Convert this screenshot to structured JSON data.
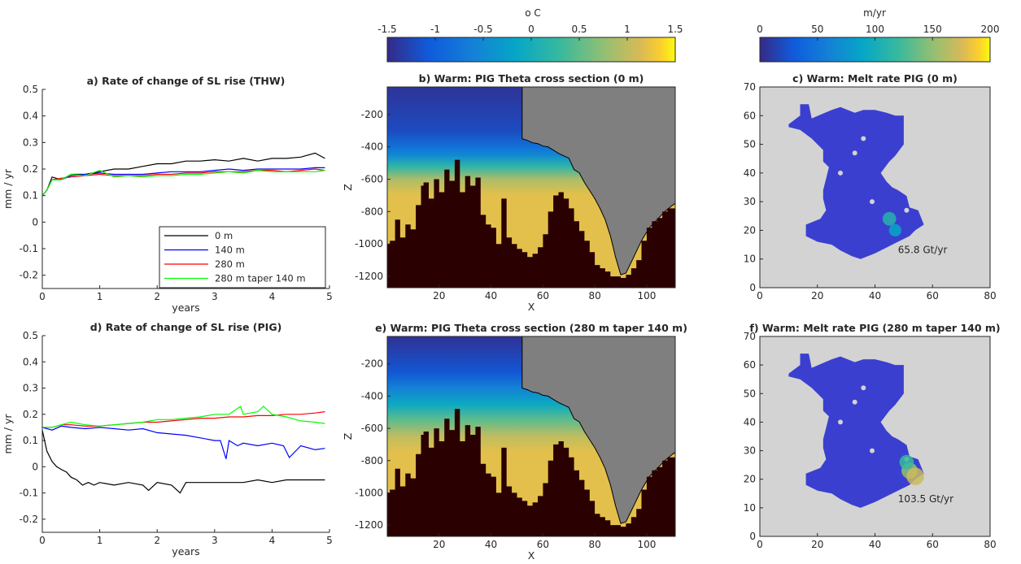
{
  "colors": {
    "black": "#000000",
    "blue": "#0000ff",
    "red": "#ff0000",
    "green": "#00ff00",
    "ice": "#7f7f7f",
    "bed": "#2a0000",
    "melt_background": "#d3d3d3",
    "melt_region": "#3b3fd0"
  },
  "colorbars": [
    {
      "label": "o C",
      "ticks": [
        "-1.5",
        "-1",
        "-0.5",
        "0",
        "0.5",
        "1",
        "1.5"
      ],
      "colormap": "parula"
    },
    {
      "label": "m/yr",
      "ticks": [
        "0",
        "50",
        "100",
        "150",
        "200"
      ],
      "colormap": "parula"
    }
  ],
  "chart_data": [
    {
      "id": "a",
      "type": "line",
      "title": "a) Rate of change of SL rise (THW)",
      "xlabel": "years",
      "ylabel": "mm / yr",
      "xlim": [
        0,
        5
      ],
      "ylim": [
        -0.25,
        0.5
      ],
      "xticks": [
        "0",
        "1",
        "2",
        "3",
        "4",
        "5"
      ],
      "yticks": [
        "-0.2",
        "-0.1",
        "0",
        "0.1",
        "0.2",
        "0.3",
        "0.4",
        "0.5"
      ],
      "legend": {
        "position": "bottom-right",
        "entries": [
          "0 m",
          "140 m",
          "280 m",
          "280 m taper 140 m"
        ]
      },
      "series": [
        {
          "name": "0 m",
          "color": "#000000",
          "x": [
            0,
            0.08,
            0.17,
            0.33,
            0.5,
            0.75,
            1,
            1.25,
            1.5,
            1.75,
            2,
            2.25,
            2.5,
            2.75,
            3,
            3.25,
            3.5,
            3.75,
            4,
            4.25,
            4.5,
            4.75,
            4.92
          ],
          "y": [
            0.1,
            0.12,
            0.17,
            0.16,
            0.18,
            0.18,
            0.19,
            0.2,
            0.2,
            0.21,
            0.22,
            0.22,
            0.23,
            0.23,
            0.235,
            0.23,
            0.24,
            0.23,
            0.24,
            0.24,
            0.245,
            0.26,
            0.24
          ]
        },
        {
          "name": "140 m",
          "color": "#0000ff",
          "x": [
            0,
            0.08,
            0.17,
            0.33,
            0.5,
            0.75,
            1,
            1.25,
            1.5,
            1.75,
            2,
            2.25,
            2.5,
            2.75,
            3,
            3.25,
            3.5,
            3.75,
            4,
            4.25,
            4.5,
            4.75,
            4.92
          ],
          "y": [
            0.1,
            0.12,
            0.16,
            0.16,
            0.175,
            0.18,
            0.185,
            0.18,
            0.18,
            0.18,
            0.185,
            0.19,
            0.19,
            0.19,
            0.195,
            0.2,
            0.195,
            0.2,
            0.2,
            0.2,
            0.2,
            0.205,
            0.205
          ]
        },
        {
          "name": "280 m",
          "color": "#ff0000",
          "x": [
            0,
            0.08,
            0.17,
            0.33,
            0.5,
            0.75,
            1,
            1.25,
            1.5,
            1.75,
            2,
            2.25,
            2.5,
            2.75,
            3,
            3.25,
            3.5,
            3.75,
            4,
            4.25,
            4.5,
            4.75,
            4.92
          ],
          "y": [
            0.1,
            0.12,
            0.16,
            0.165,
            0.17,
            0.175,
            0.18,
            0.175,
            0.175,
            0.175,
            0.18,
            0.18,
            0.185,
            0.185,
            0.19,
            0.19,
            0.19,
            0.195,
            0.195,
            0.19,
            0.195,
            0.2,
            0.195
          ]
        },
        {
          "name": "280 m taper 140 m",
          "color": "#00ff00",
          "x": [
            0,
            0.08,
            0.17,
            0.33,
            0.5,
            0.75,
            1,
            1.25,
            1.5,
            1.75,
            2,
            2.25,
            2.5,
            2.75,
            3,
            3.25,
            3.5,
            3.75,
            4,
            4.25,
            4.5,
            4.75,
            4.92
          ],
          "y": [
            0.1,
            0.12,
            0.16,
            0.16,
            0.18,
            0.175,
            0.195,
            0.17,
            0.175,
            0.17,
            0.175,
            0.175,
            0.18,
            0.18,
            0.185,
            0.19,
            0.185,
            0.195,
            0.19,
            0.19,
            0.19,
            0.19,
            0.195
          ]
        }
      ]
    },
    {
      "id": "b",
      "type": "heatmap",
      "title": "b) Warm: PIG Theta cross section (0 m)",
      "xlabel": "X",
      "ylabel": "Z",
      "xlim": [
        0,
        111
      ],
      "ylim": [
        -1270,
        -30
      ],
      "xticks": [
        "20",
        "40",
        "60",
        "80",
        "100"
      ],
      "yticks": [
        "-200",
        "-400",
        "-600",
        "-800",
        "-1000",
        "-1200"
      ],
      "colorbar": "°C",
      "ice_base": {
        "x": [
          52,
          52,
          54,
          56,
          58,
          60,
          62,
          64,
          66,
          68,
          70,
          72,
          74,
          76,
          78,
          80,
          82,
          84,
          86,
          88,
          90,
          92,
          95,
          98,
          101,
          104,
          107,
          110,
          111
        ],
        "z": [
          -30,
          -350,
          -360,
          -375,
          -380,
          -395,
          -400,
          -420,
          -440,
          -455,
          -470,
          -540,
          -560,
          -620,
          -670,
          -720,
          -780,
          -850,
          -950,
          -1080,
          -1190,
          -1180,
          -1080,
          -980,
          -900,
          -850,
          -800,
          -760,
          -750
        ]
      },
      "bed": {
        "x": [
          0,
          1,
          3,
          5,
          7,
          9,
          11,
          13,
          14,
          16,
          18,
          20,
          22,
          24,
          26,
          28,
          30,
          32,
          34,
          36,
          38,
          40,
          42,
          44,
          46,
          48,
          50,
          52,
          54,
          56,
          58,
          60,
          62,
          64,
          66,
          68,
          70,
          72,
          74,
          76,
          78,
          80,
          82,
          84,
          86,
          88,
          90,
          92,
          94,
          96,
          98,
          100,
          102,
          104,
          106,
          108,
          111
        ],
        "z": [
          -1000,
          -980,
          -850,
          -960,
          -880,
          -910,
          -760,
          -640,
          -620,
          -720,
          -600,
          -680,
          -540,
          -610,
          -480,
          -680,
          -580,
          -640,
          -590,
          -820,
          -880,
          -900,
          -1000,
          -720,
          -960,
          -1000,
          -1030,
          -1050,
          -1080,
          -1060,
          -1020,
          -940,
          -800,
          -700,
          -680,
          -720,
          -780,
          -860,
          -920,
          -980,
          -1050,
          -1130,
          -1150,
          -1170,
          -1200,
          -1200,
          -1210,
          -1190,
          -1150,
          -1100,
          -980,
          -900,
          -860,
          -840,
          -800,
          -780,
          -760
        ]
      },
      "theta_profile": {
        "z": [
          -50,
          -300,
          -400,
          -450,
          -520,
          -600,
          -700
        ],
        "theta": [
          -1.4,
          -1.2,
          -0.8,
          -0.5,
          0.2,
          0.9,
          1.2
        ]
      }
    },
    {
      "id": "c",
      "type": "heatmap",
      "title": "c) Warm: Melt rate PIG (0 m)",
      "xlim": [
        0,
        80
      ],
      "ylim": [
        0,
        70
      ],
      "xticks": [
        "0",
        "20",
        "40",
        "60",
        "80"
      ],
      "yticks": [
        "0",
        "10",
        "20",
        "30",
        "40",
        "50",
        "60",
        "70"
      ],
      "colorbar": "m/yr",
      "annotation": "65.8 Gt/yr",
      "hotspots": [
        {
          "x": 45,
          "y": 24,
          "value": 110
        },
        {
          "x": 47,
          "y": 20,
          "value": 90
        }
      ]
    },
    {
      "id": "d",
      "type": "line",
      "title": "d) Rate of change of SL rise (PIG)",
      "xlabel": "years",
      "ylabel": "mm / yr",
      "xlim": [
        0,
        5
      ],
      "ylim": [
        -0.25,
        0.5
      ],
      "xticks": [
        "0",
        "1",
        "2",
        "3",
        "4",
        "5"
      ],
      "yticks": [
        "-0.2",
        "-0.1",
        "0",
        "0.1",
        "0.2",
        "0.3",
        "0.4",
        "0.5"
      ],
      "series": [
        {
          "name": "0 m",
          "color": "#000000",
          "x": [
            0,
            0.08,
            0.17,
            0.25,
            0.33,
            0.42,
            0.5,
            0.6,
            0.7,
            0.8,
            0.9,
            1,
            1.25,
            1.5,
            1.75,
            1.85,
            2,
            2.25,
            2.4,
            2.5,
            2.75,
            3,
            3.25,
            3.5,
            3.75,
            4,
            4.25,
            4.5,
            4.75,
            4.92
          ],
          "y": [
            0.14,
            0.06,
            0.02,
            0.0,
            -0.01,
            -0.02,
            -0.04,
            -0.05,
            -0.07,
            -0.06,
            -0.07,
            -0.06,
            -0.07,
            -0.06,
            -0.07,
            -0.09,
            -0.06,
            -0.07,
            -0.1,
            -0.06,
            -0.06,
            -0.06,
            -0.06,
            -0.06,
            -0.05,
            -0.06,
            -0.05,
            -0.05,
            -0.05,
            -0.05
          ]
        },
        {
          "name": "140 m",
          "color": "#0000ff",
          "x": [
            0,
            0.17,
            0.33,
            0.5,
            0.75,
            1,
            1.25,
            1.5,
            1.75,
            2,
            2.25,
            2.5,
            2.75,
            3,
            3.1,
            3.2,
            3.25,
            3.4,
            3.5,
            3.75,
            4,
            4.2,
            4.3,
            4.5,
            4.75,
            4.92
          ],
          "y": [
            0.15,
            0.14,
            0.155,
            0.15,
            0.145,
            0.15,
            0.145,
            0.14,
            0.145,
            0.13,
            0.125,
            0.12,
            0.11,
            0.1,
            0.1,
            0.03,
            0.1,
            0.08,
            0.09,
            0.08,
            0.09,
            0.08,
            0.035,
            0.08,
            0.065,
            0.07
          ]
        },
        {
          "name": "280 m",
          "color": "#ff0000",
          "x": [
            0,
            0.17,
            0.33,
            0.5,
            0.75,
            1,
            1.25,
            1.5,
            1.75,
            2,
            2.25,
            2.5,
            2.75,
            3,
            3.25,
            3.5,
            3.75,
            4,
            4.25,
            4.5,
            4.75,
            4.92
          ],
          "y": [
            0.15,
            0.15,
            0.16,
            0.16,
            0.155,
            0.155,
            0.16,
            0.165,
            0.17,
            0.17,
            0.175,
            0.18,
            0.185,
            0.185,
            0.19,
            0.19,
            0.195,
            0.195,
            0.2,
            0.2,
            0.205,
            0.21
          ]
        },
        {
          "name": "280 m taper 140 m",
          "color": "#00ff00",
          "x": [
            0,
            0.17,
            0.33,
            0.5,
            0.75,
            1,
            1.25,
            1.5,
            1.75,
            2,
            2.25,
            2.5,
            2.75,
            3,
            3.25,
            3.45,
            3.5,
            3.75,
            3.85,
            4,
            4.25,
            4.5,
            4.75,
            4.92
          ],
          "y": [
            0.15,
            0.15,
            0.16,
            0.17,
            0.16,
            0.155,
            0.16,
            0.165,
            0.17,
            0.18,
            0.18,
            0.185,
            0.19,
            0.2,
            0.2,
            0.23,
            0.2,
            0.21,
            0.23,
            0.2,
            0.19,
            0.175,
            0.17,
            0.165
          ]
        }
      ]
    },
    {
      "id": "e",
      "type": "heatmap",
      "title": "e) Warm: PIG Theta cross section (280 m taper 140 m)",
      "xlabel": "X",
      "ylabel": "Z",
      "xlim": [
        0,
        111
      ],
      "ylim": [
        -1270,
        -30
      ],
      "xticks": [
        "20",
        "40",
        "60",
        "80",
        "100"
      ],
      "yticks": [
        "-200",
        "-400",
        "-600",
        "-800",
        "-1000",
        "-1200"
      ],
      "colorbar": "°C",
      "ice_base": {
        "x": [
          52,
          52,
          54,
          56,
          58,
          60,
          62,
          64,
          66,
          68,
          70,
          72,
          74,
          76,
          78,
          80,
          82,
          84,
          86,
          88,
          90,
          92,
          95,
          98,
          101,
          104,
          107,
          110,
          111
        ],
        "z": [
          -30,
          -350,
          -360,
          -375,
          -380,
          -395,
          -400,
          -420,
          -440,
          -455,
          -470,
          -540,
          -560,
          -620,
          -670,
          -720,
          -780,
          -850,
          -950,
          -1080,
          -1190,
          -1180,
          -1080,
          -980,
          -900,
          -850,
          -800,
          -760,
          -750
        ]
      },
      "bed": {
        "x": [
          0,
          1,
          3,
          5,
          7,
          9,
          11,
          13,
          14,
          16,
          18,
          20,
          22,
          24,
          26,
          28,
          30,
          32,
          34,
          36,
          38,
          40,
          42,
          44,
          46,
          48,
          50,
          52,
          54,
          56,
          58,
          60,
          62,
          64,
          66,
          68,
          70,
          72,
          74,
          76,
          78,
          80,
          82,
          84,
          86,
          88,
          90,
          92,
          94,
          96,
          98,
          100,
          102,
          104,
          106,
          108,
          111
        ],
        "z": [
          -1000,
          -980,
          -850,
          -960,
          -880,
          -910,
          -760,
          -640,
          -620,
          -720,
          -600,
          -680,
          -540,
          -610,
          -480,
          -680,
          -580,
          -640,
          -590,
          -820,
          -880,
          -900,
          -1000,
          -720,
          -960,
          -1000,
          -1030,
          -1050,
          -1080,
          -1060,
          -1020,
          -940,
          -800,
          -700,
          -680,
          -720,
          -780,
          -860,
          -920,
          -980,
          -1050,
          -1130,
          -1150,
          -1170,
          -1200,
          -1200,
          -1210,
          -1190,
          -1150,
          -1100,
          -980,
          -900,
          -860,
          -840,
          -800,
          -780,
          -760
        ]
      },
      "theta_profile": {
        "z": [
          -50,
          -250,
          -350,
          -450,
          -550,
          -650,
          -750
        ],
        "theta": [
          -1.4,
          -1.1,
          -0.6,
          -0.1,
          0.5,
          1.0,
          1.2
        ]
      }
    },
    {
      "id": "f",
      "type": "heatmap",
      "title": "f) Warm: Melt rate PIG (280 m taper 140 m)",
      "xlim": [
        0,
        80
      ],
      "ylim": [
        0,
        70
      ],
      "xticks": [
        "0",
        "20",
        "40",
        "60",
        "80"
      ],
      "yticks": [
        "0",
        "10",
        "20",
        "30",
        "40",
        "50",
        "60",
        "70"
      ],
      "colorbar": "m/yr",
      "annotation": "103.5 Gt/yr",
      "hotspots": [
        {
          "x": 52,
          "y": 23,
          "value": 150
        },
        {
          "x": 54,
          "y": 21,
          "value": 170
        },
        {
          "x": 51,
          "y": 26,
          "value": 120
        }
      ]
    }
  ]
}
